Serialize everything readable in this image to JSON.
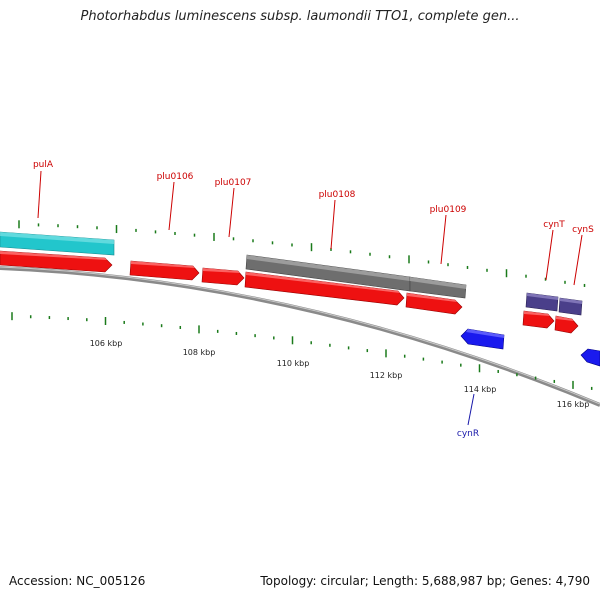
{
  "title": "Photorhabdus luminescens subsp. laumondii TTO1, complete gen...",
  "footer": {
    "accession": "Accession: NC_005126",
    "summary": "Topology: circular; Length: 5,688,987 bp; Genes: 4,790"
  },
  "colors": {
    "forward_cds": "#ee1111",
    "reverse_cds": "#1a1aee",
    "rrna": "#22c6cc",
    "pseudo": "#6e6e6e",
    "transport": "#4a3f8a",
    "label_forward": "#cc0000",
    "label_reverse": "#1a1aaa",
    "tick": "#1a7a1a",
    "backbone": "#8a8a8a"
  },
  "scale": {
    "labels": [
      "106 kbp",
      "108 kbp",
      "110 kbp",
      "112 kbp",
      "114 kbp",
      "116 kbp"
    ]
  },
  "gene_labels": [
    {
      "text": "pulA",
      "strand": "forward"
    },
    {
      "text": "plu0106",
      "strand": "forward"
    },
    {
      "text": "plu0107",
      "strand": "forward"
    },
    {
      "text": "plu0108",
      "strand": "forward"
    },
    {
      "text": "plu0109",
      "strand": "forward"
    },
    {
      "text": "cynT",
      "strand": "forward"
    },
    {
      "text": "cynS",
      "strand": "forward"
    },
    {
      "text": "cynR",
      "strand": "reverse"
    }
  ],
  "features": [
    {
      "name": "rrna-feature",
      "type": "rrna"
    },
    {
      "name": "pseudo-feature-1",
      "type": "pseudo"
    },
    {
      "name": "pseudo-feature-2",
      "type": "pseudo"
    },
    {
      "name": "cynT-transport-feature",
      "type": "transport"
    },
    {
      "name": "cynS-transport-feature",
      "type": "transport"
    },
    {
      "name": "forward-cds-1",
      "type": "forward_cds"
    },
    {
      "name": "forward-cds-2",
      "type": "forward_cds"
    },
    {
      "name": "forward-cds-3",
      "type": "forward_cds"
    },
    {
      "name": "forward-cds-4",
      "type": "forward_cds"
    },
    {
      "name": "forward-cds-5",
      "type": "forward_cds"
    },
    {
      "name": "forward-cds-6",
      "type": "forward_cds"
    },
    {
      "name": "forward-cds-7",
      "type": "forward_cds"
    },
    {
      "name": "reverse-cds-1",
      "type": "reverse_cds"
    },
    {
      "name": "reverse-cds-2",
      "type": "reverse_cds"
    }
  ]
}
